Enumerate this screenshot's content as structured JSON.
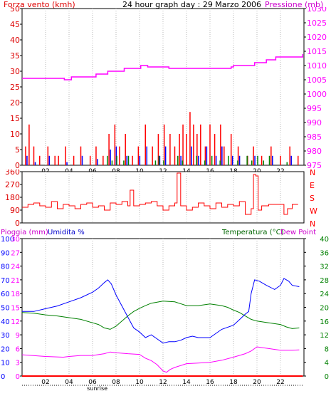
{
  "header": {
    "left": "Forza vento (kmh)",
    "center": "24 hour graph day : 29 Marzo 2006",
    "right": "Pressione (mb)"
  },
  "colors": {
    "red": "#ff0000",
    "magenta": "#ff00ff",
    "blue": "#0000ff",
    "green": "#008000",
    "darkred": "#dd0000"
  },
  "chart_data": [
    {
      "type": "line",
      "name": "wind-pressure",
      "x_ticks": [
        "02",
        "04",
        "06",
        "08",
        "10",
        "12",
        "14",
        "16",
        "18",
        "20",
        "22"
      ],
      "x_annotation": "sunrise",
      "y_left_ticks": [
        "0",
        "5",
        "10",
        "15",
        "20",
        "25",
        "30",
        "35",
        "40",
        "45",
        "50"
      ],
      "y_left_range": [
        0,
        50
      ],
      "y_right_ticks": [
        "975",
        "980",
        "985",
        "990",
        "995",
        "1000",
        "1005",
        "1010",
        "1015",
        "1020",
        "1025",
        "1030"
      ],
      "y_right_range": [
        975,
        1030
      ],
      "pressure": {
        "x": [
          0,
          3.5,
          3.6,
          4.1,
          4.2,
          6.2,
          6.3,
          7.2,
          7.3,
          8.6,
          8.7,
          10.0,
          10.1,
          10.6,
          10.7,
          12.4,
          12.5,
          17.6,
          17.8,
          18.0,
          19.5,
          19.8,
          20.6,
          20.8,
          21.4,
          21.6,
          23.5,
          23.9
        ],
        "y": [
          1005.5,
          1005.5,
          1005,
          1005,
          1006,
          1006,
          1007,
          1007,
          1008,
          1008,
          1009,
          1009,
          1010,
          1010,
          1009.5,
          1009.5,
          1009,
          1009,
          1009.5,
          1010,
          1010,
          1011,
          1011,
          1012,
          1012,
          1013,
          1013,
          1014
        ]
      },
      "wind_max": {
        "x": [
          0.3,
          0.6,
          1.0,
          1.5,
          2.2,
          2.8,
          3.1,
          3.7,
          4.4,
          5.0,
          5.8,
          6.3,
          6.9,
          7.4,
          7.9,
          8.3,
          8.8,
          9.4,
          9.9,
          10.5,
          11.1,
          11.6,
          12.1,
          12.6,
          13.0,
          13.4,
          13.7,
          14.0,
          14.3,
          14.6,
          14.9,
          15.2,
          15.6,
          16.0,
          16.4,
          16.9,
          17.2,
          17.8,
          18.4,
          19.2,
          19.7,
          20.4,
          21.2,
          22.0,
          22.8,
          23.5
        ],
        "y": [
          6,
          13,
          6,
          3,
          6,
          3,
          3,
          6,
          3,
          6,
          3,
          6,
          3,
          10,
          13,
          6,
          10,
          3,
          6,
          13,
          6,
          10,
          13,
          10,
          6,
          10,
          13,
          10,
          17,
          13,
          10,
          13,
          6,
          13,
          10,
          13,
          6,
          10,
          6,
          3,
          6,
          3,
          6,
          3,
          6,
          3
        ]
      },
      "wind_avg": {
        "x": [
          0.3,
          1.0,
          2.2,
          3.7,
          5.0,
          6.3,
          7.4,
          7.9,
          8.8,
          9.9,
          10.5,
          11.6,
          12.1,
          13.4,
          14.3,
          14.9,
          15.6,
          16.4,
          16.9,
          17.8,
          18.4,
          19.7,
          21.2,
          22.8
        ],
        "y": [
          3,
          1,
          3,
          1,
          3,
          2,
          5,
          6,
          3,
          3,
          6,
          3,
          6,
          3,
          6,
          3,
          6,
          3,
          6,
          3,
          3,
          3,
          3,
          3
        ]
      },
      "wind_min": {
        "x": [
          7.2,
          7.6,
          8.0,
          8.6,
          9.0,
          11.3,
          11.6,
          12.0,
          13.2,
          13.6,
          14.8,
          15.5,
          16.1,
          16.8,
          17.5,
          18.3,
          19.1,
          19.5,
          20.0,
          20.5,
          21.0,
          22.5
        ],
        "y": [
          3,
          1.5,
          3,
          1.5,
          3,
          1.5,
          3,
          1.5,
          3,
          1.5,
          3,
          1.5,
          3,
          1.5,
          3,
          1.5,
          3,
          1.5,
          3,
          1.5,
          3,
          1
        ]
      }
    },
    {
      "type": "line",
      "name": "wind-direction",
      "x_ticks": [],
      "y_left_ticks": [
        "0",
        "90",
        "180",
        "270",
        "360"
      ],
      "y_left_range": [
        0,
        360
      ],
      "y_right_ticks": [
        "N",
        "W",
        "S",
        "E",
        "N"
      ],
      "direction": {
        "x": [
          0,
          0.5,
          1,
          1.5,
          2,
          2.5,
          3,
          3.5,
          4,
          4.5,
          5,
          5.5,
          6,
          6.5,
          7,
          7.5,
          8,
          8.5,
          9,
          9.2,
          9.5,
          10,
          10.5,
          11,
          11.5,
          12,
          12.5,
          13,
          13.2,
          13.5,
          14,
          14.5,
          15,
          15.5,
          16,
          16.5,
          17,
          17.5,
          18,
          18.5,
          19,
          19.5,
          19.7,
          19.9,
          20.1,
          20.4,
          21,
          21.5,
          22,
          22.3,
          22.6,
          23,
          23.5
        ],
        "y": [
          110,
          130,
          140,
          120,
          110,
          150,
          100,
          130,
          120,
          100,
          130,
          140,
          110,
          120,
          90,
          140,
          130,
          150,
          120,
          230,
          120,
          130,
          140,
          150,
          120,
          90,
          120,
          140,
          350,
          120,
          90,
          110,
          140,
          120,
          100,
          140,
          110,
          130,
          120,
          150,
          60,
          100,
          340,
          330,
          90,
          120,
          130,
          130,
          130,
          60,
          100,
          130,
          130
        ]
      }
    },
    {
      "type": "line",
      "name": "rain-humidity-temperature",
      "labels": {
        "rain": "Pioggia (mm)",
        "humidity": "Umidita %",
        "temperature": "Temperatura (°C)",
        "dewpoint": "Dew Point"
      },
      "x_ticks": [
        "02",
        "04",
        "06",
        "08",
        "10",
        "12",
        "14",
        "16",
        "18",
        "20",
        "22"
      ],
      "x_annotation": "sunrise",
      "y_rain_ticks": [
        "0",
        "3",
        "6",
        "9",
        "12",
        "15",
        "18",
        "21",
        "24",
        "27",
        "30"
      ],
      "y_rain_range": [
        0,
        30
      ],
      "y_humidity_ticks": [
        "0",
        "10",
        "20",
        "30",
        "40",
        "50",
        "60",
        "70",
        "80",
        "90",
        "100"
      ],
      "y_humidity_range": [
        0,
        100
      ],
      "y_right_ticks": [
        "0",
        "4",
        "8",
        "12",
        "16",
        "20",
        "24",
        "28",
        "32",
        "36",
        "40"
      ],
      "y_right_range": [
        0,
        40
      ],
      "rain": {
        "x": [
          0,
          23.9
        ],
        "y": [
          0,
          0
        ]
      },
      "humidity": {
        "x": [
          0,
          1,
          2,
          3,
          4,
          5,
          6,
          6.5,
          7,
          7.3,
          7.6,
          8,
          8.5,
          9,
          9.5,
          10,
          10.5,
          11,
          11.5,
          12,
          12.5,
          13,
          13.5,
          14,
          14.5,
          15,
          16,
          17,
          18,
          18.5,
          19,
          19.3,
          19.5,
          19.8,
          20.2,
          20.8,
          21.5,
          22,
          22.3,
          22.7,
          23,
          23.6
        ],
        "y": [
          47,
          47,
          49,
          51,
          54,
          57,
          61,
          64,
          68,
          70,
          67,
          59,
          51,
          43,
          35,
          32,
          28,
          30,
          27,
          24,
          25,
          25,
          26,
          28,
          29,
          28,
          28,
          34,
          37,
          41,
          45,
          47,
          60,
          70,
          69,
          66,
          63,
          66,
          71,
          69,
          66,
          65
        ]
      },
      "temperature": {
        "x": [
          0,
          1,
          2,
          3,
          4,
          5,
          6,
          6.5,
          7,
          7.5,
          8,
          8.5,
          9,
          9.5,
          10,
          10.5,
          11,
          12,
          13,
          14,
          15,
          16,
          17,
          17.5,
          18,
          18.5,
          19,
          19.5,
          20,
          21,
          22,
          22.5,
          23,
          23.6
        ],
        "y": [
          18.5,
          18.3,
          17.8,
          17.5,
          17,
          16.5,
          15.5,
          15,
          14,
          13.6,
          14.5,
          16,
          17.5,
          18.8,
          19.7,
          20.5,
          21.2,
          21.8,
          21.6,
          20.5,
          20.5,
          21,
          20.5,
          20,
          19.2,
          18.5,
          17.5,
          16.5,
          16,
          15.5,
          15,
          14.3,
          13.8,
          14
        ]
      },
      "dewpoint": {
        "x": [
          0,
          2,
          3.5,
          4,
          5,
          6,
          7,
          7.5,
          8,
          9,
          10,
          10.5,
          11,
          11.5,
          12,
          12.3,
          12.6,
          13,
          14,
          15,
          16,
          17,
          18,
          19,
          19.5,
          20,
          21,
          22,
          23,
          23.6
        ],
        "y": [
          6.2,
          5.7,
          5.5,
          5.7,
          6,
          6,
          6.5,
          7,
          6.8,
          6.5,
          6.3,
          5.2,
          4.5,
          3.3,
          1.5,
          1.1,
          1.9,
          2.5,
          3.6,
          3.8,
          4,
          4.6,
          5.5,
          6.5,
          7.3,
          8.5,
          8,
          7.5,
          7.5,
          7.6
        ]
      }
    }
  ]
}
